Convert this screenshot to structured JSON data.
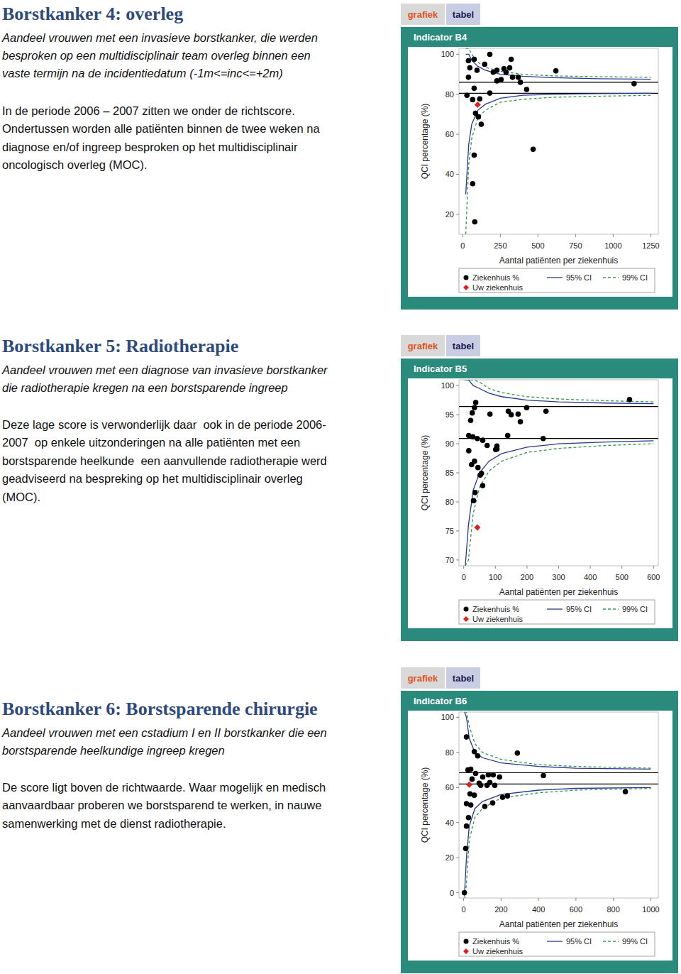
{
  "sections": [
    {
      "title": "Borstkanker 4: overleg",
      "subtitle_lines": [
        "Aandeel vrouwen met een invasieve borstkanker, die werden",
        "besproken op een multidisciplinair team overleg binnen een",
        "vaste termijn na de incidentiedatum (-1m<=inc<=+2m)"
      ],
      "body_lines": [
        "In de periode 2006 – 2007 zitten we onder de richtscore.",
        "Ondertussen worden alle patiënten binnen de twee weken na",
        "diagnose en/of ingreep besproken op het multidisciplinair",
        "oncologisch overleg (MOC)."
      ]
    },
    {
      "title": "Borstkanker 5: Radiotherapie",
      "subtitle_lines": [
        "Aandeel vrouwen met een diagnose van invasieve borstkanker",
        "die radiotherapie kregen na een borstsparende ingreep"
      ],
      "body_lines": [
        "Deze lage score is verwonderlijk daar  ook in de periode 2006-",
        "2007  op enkele uitzonderingen na alle patiënten met een",
        "borstsparende heelkunde  een aanvullende radiotherapie werd",
        "geadviseerd na bespreking op het multidisciplinair overleg",
        "(MOC)."
      ]
    },
    {
      "title": "Borstkanker 6: Borstsparende chirurgie",
      "subtitle_lines": [
        "Aandeel vrouwen met een cstadium I en II borstkanker die een",
        "borstsparende heelkundige ingreep kregen"
      ],
      "body_lines": [
        "De score ligt boven de richtwaarde. Waar mogelijk en medisch",
        "aanvaardbaar proberen we borstsparend te werken, in nauwe",
        "samenwerking met de dienst radiotherapie."
      ]
    }
  ],
  "chart_data": [
    {
      "type": "scatter",
      "tabs": [
        "grafiek",
        "tabel"
      ],
      "title": "Indicator B4",
      "x_label": "Aantal patiënten per ziekenhuis",
      "y_label": "QCI percentage (%)",
      "xlim": [
        -25,
        1300
      ],
      "ylim": [
        10,
        103
      ],
      "xticks": [
        0,
        250,
        500,
        750,
        1000,
        1250
      ],
      "yticks": [
        20,
        40,
        60,
        80,
        100
      ],
      "legend": "bottom",
      "reference_lines": [
        86,
        80.5
      ],
      "series": [
        {
          "name": "Ziekenhuis %",
          "type": "scatter",
          "marker": "circle",
          "color": "#000000",
          "x": [
            38,
            76,
            180,
            95,
            146,
            203,
            274,
            288,
            312,
            369,
            383,
            425,
            619,
            1139,
            227,
            255,
            331,
            28,
            66,
            113,
            180,
            85,
            104,
            123,
            76,
            66,
            80,
            468,
            47,
            227,
            322,
            38,
            76
          ],
          "values": [
            96.8,
            97.5,
            100,
            92,
            95,
            91,
            92.8,
            91,
            93.2,
            88.5,
            86,
            82.4,
            91.7,
            85.3,
            86.7,
            87.4,
            88.5,
            79.5,
            77.3,
            77.7,
            80.6,
            70.5,
            68.7,
            65,
            49.6,
            35.3,
            16.2,
            52.5,
            93.2,
            92,
            97.5,
            88.5,
            83
          ]
        },
        {
          "name": "Uw ziekenhuis",
          "type": "scatter",
          "marker": "diamond",
          "color": "#e0201c",
          "x": [
            99
          ],
          "values": [
            74.8
          ]
        },
        {
          "name": "95% CI",
          "type": "band",
          "line_style": "solid",
          "color": "#2b3590",
          "x": [
            20,
            40,
            60,
            100,
            150,
            250,
            400,
            600,
            900,
            1250
          ],
          "upper": [
            100,
            100,
            97,
            94,
            92,
            90,
            89,
            88.3,
            87.8,
            87.5
          ],
          "lower": [
            30,
            55,
            65,
            72,
            75,
            78,
            79.5,
            80,
            80.3,
            80.5
          ]
        },
        {
          "name": "99% CI",
          "type": "band",
          "line_style": "dashed",
          "color": "#2f9a48",
          "x": [
            20,
            40,
            60,
            100,
            150,
            250,
            400,
            600,
            900,
            1250
          ],
          "upper": [
            103,
            103,
            100,
            96,
            93.5,
            91.5,
            90,
            89.2,
            88.8,
            88.5
          ],
          "lower": [
            10,
            45,
            58,
            68,
            72,
            76,
            77.5,
            78.5,
            79,
            79.5
          ]
        }
      ]
    },
    {
      "type": "scatter",
      "tabs": [
        "grafiek",
        "tabel"
      ],
      "title": "Indicator B5",
      "x_label": "Aantal patiënten per ziekenhuis",
      "y_label": "QCI percentage (%)",
      "xlim": [
        -15,
        615
      ],
      "ylim": [
        69,
        101
      ],
      "xticks": [
        0,
        100,
        200,
        300,
        400,
        500,
        600
      ],
      "yticks": [
        70,
        75,
        80,
        85,
        90,
        95,
        100
      ],
      "legend": "bottom",
      "reference_lines": [
        96.4,
        90.9
      ],
      "series": [
        {
          "name": "Ziekenhuis %",
          "type": "scatter",
          "marker": "circle",
          "color": "#000000",
          "x": [
            38,
            34,
            27,
            22,
            83,
            141,
            150,
            172,
            199,
            260,
            524,
            179,
            16,
            29,
            43,
            60,
            74,
            105,
            139,
            251,
            34,
            45,
            52,
            60,
            36,
            31,
            25,
            16,
            56,
            105,
            101
          ],
          "values": [
            97.1,
            96.2,
            95.3,
            94,
            95.1,
            95.6,
            95,
            95.1,
            96.2,
            95.6,
            97.6,
            93.8,
            91.4,
            91.2,
            90.9,
            90.6,
            89.7,
            89.1,
            91.4,
            90.9,
            87,
            85.9,
            84.6,
            82.8,
            81.6,
            80.2,
            86.4,
            88.8,
            84.9,
            89.6,
            89
          ]
        },
        {
          "name": "Uw ziekenhuis",
          "type": "scatter",
          "marker": "diamond",
          "color": "#e0201c",
          "x": [
            43
          ],
          "values": [
            75.6
          ]
        },
        {
          "name": "95% CI",
          "type": "band",
          "line_style": "solid",
          "color": "#2b3590",
          "x": [
            5,
            15,
            30,
            50,
            80,
            120,
            200,
            300,
            450,
            600
          ],
          "upper": [
            101,
            101,
            100,
            99.5,
            98.7,
            98.1,
            97.5,
            97.2,
            97,
            96.9
          ],
          "lower": [
            69,
            76,
            82,
            85,
            87,
            88.3,
            89.4,
            90,
            90.3,
            90.5
          ]
        },
        {
          "name": "99% CI",
          "type": "band",
          "line_style": "dashed",
          "color": "#2f9a48",
          "x": [
            5,
            15,
            30,
            50,
            80,
            120,
            200,
            300,
            450,
            600
          ],
          "upper": [
            101,
            101,
            101,
            100.6,
            99.5,
            98.8,
            98.1,
            97.7,
            97.4,
            97.2
          ],
          "lower": [
            69,
            70,
            78,
            82.5,
            85.3,
            87,
            88.5,
            89.2,
            89.7,
            90
          ]
        }
      ]
    },
    {
      "type": "scatter",
      "tabs": [
        "grafiek",
        "tabel"
      ],
      "title": "Indicator B6",
      "x_label": "Aantal patiënten per ziekenhuis",
      "y_label": "QCI percentage (%)",
      "xlim": [
        -25,
        1040
      ],
      "ylim": [
        -3,
        103
      ],
      "xticks": [
        0,
        200,
        400,
        600,
        800,
        1000
      ],
      "yticks": [
        0,
        20,
        40,
        60,
        80,
        100
      ],
      "legend": "bottom",
      "reference_lines": [
        68.4,
        62
      ],
      "series": [
        {
          "name": "Ziekenhuis %",
          "type": "scatter",
          "marker": "circle",
          "color": "#000000",
          "x": [
            15,
            57,
            75,
            287,
            23,
            38,
            64,
            45,
            102,
            132,
            158,
            166,
            125,
            91,
            192,
            426,
            34,
            57,
            38,
            15,
            113,
            155,
            208,
            234,
            864,
            26,
            15,
            11,
            4,
            83,
            140
          ],
          "values": [
            88.8,
            80.4,
            78,
            79.6,
            70,
            70.4,
            68,
            64.8,
            66,
            67.2,
            67.2,
            61.2,
            61.2,
            61.2,
            66,
            66.8,
            56.4,
            55.6,
            50,
            50.8,
            49.2,
            51.2,
            54.4,
            55.2,
            57.6,
            42.8,
            38,
            25.2,
            0,
            62.4,
            62.8
          ]
        },
        {
          "name": "Uw ziekenhuis",
          "type": "scatter",
          "marker": "diamond",
          "color": "#e0201c",
          "x": [
            30
          ],
          "values": [
            61.6
          ]
        },
        {
          "name": "95% CI",
          "type": "band",
          "line_style": "solid",
          "color": "#2b3590",
          "x": [
            5,
            15,
            30,
            60,
            100,
            200,
            400,
            600,
            1000
          ],
          "upper": [
            103,
            100,
            88,
            80,
            77,
            74,
            72,
            71,
            70.5
          ],
          "lower": [
            0,
            20,
            38,
            48,
            52,
            56,
            58.5,
            59.5,
            60
          ]
        },
        {
          "name": "99% CI",
          "type": "band",
          "line_style": "dashed",
          "color": "#2f9a48",
          "x": [
            5,
            15,
            30,
            60,
            100,
            200,
            400,
            600,
            1000
          ],
          "upper": [
            103,
            103,
            95,
            85,
            80,
            76,
            73,
            72,
            71
          ],
          "lower": [
            -3,
            5,
            30,
            43,
            48,
            54,
            57,
            58.5,
            59.5
          ]
        }
      ]
    }
  ]
}
